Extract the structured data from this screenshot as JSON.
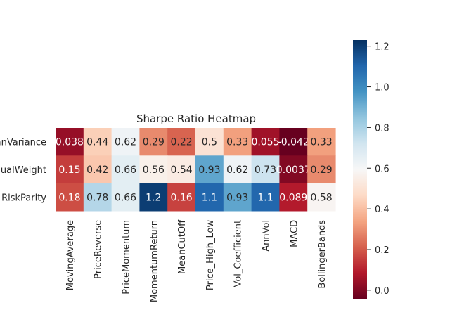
{
  "chart_data": {
    "type": "heatmap",
    "title": "Sharpe Ratio Heatmap",
    "rows": [
      "MeanVariance",
      "EqualWeight",
      "RiskParity"
    ],
    "columns": [
      "MovingAverage",
      "PriceReverse",
      "PriceMomentum",
      "MomentumReturn",
      "MeanCutOff",
      "Price_High_Low",
      "Vol_Coefficient",
      "AnnVol",
      "MACD",
      "BollingerBands"
    ],
    "values": [
      [
        0.038,
        0.44,
        0.62,
        0.29,
        0.22,
        0.5,
        0.33,
        0.055,
        -0.042,
        0.33
      ],
      [
        0.15,
        0.42,
        0.66,
        0.56,
        0.54,
        0.93,
        0.62,
        0.73,
        0.0037,
        0.29
      ],
      [
        0.18,
        0.78,
        0.66,
        1.2,
        0.16,
        1.1,
        0.93,
        1.1,
        0.089,
        0.58
      ]
    ],
    "cell_labels": [
      [
        "0.038",
        "0.44",
        "0.62",
        "0.29",
        "0.22",
        "0.5",
        "0.33",
        "0.055",
        "-0.042",
        "0.33"
      ],
      [
        "0.15",
        "0.42",
        "0.66",
        "0.56",
        "0.54",
        "0.93",
        "0.62",
        "0.73",
        "0.0037",
        "0.29"
      ],
      [
        "0.18",
        "0.78",
        "0.66",
        "1.2",
        "0.16",
        "1.1",
        "0.93",
        "1.1",
        "0.089",
        "0.58"
      ]
    ],
    "colormap": "RdBu",
    "vmin": -0.042,
    "vmax": 1.23,
    "colorbar_ticks": [
      0.0,
      0.2,
      0.4,
      0.6,
      0.8,
      1.0,
      1.2
    ],
    "colorbar_tick_labels": [
      "0.0",
      "0.2",
      "0.4",
      "0.6",
      "0.8",
      "1.0",
      "1.2"
    ],
    "colorbar_position": "right",
    "grid": false
  }
}
